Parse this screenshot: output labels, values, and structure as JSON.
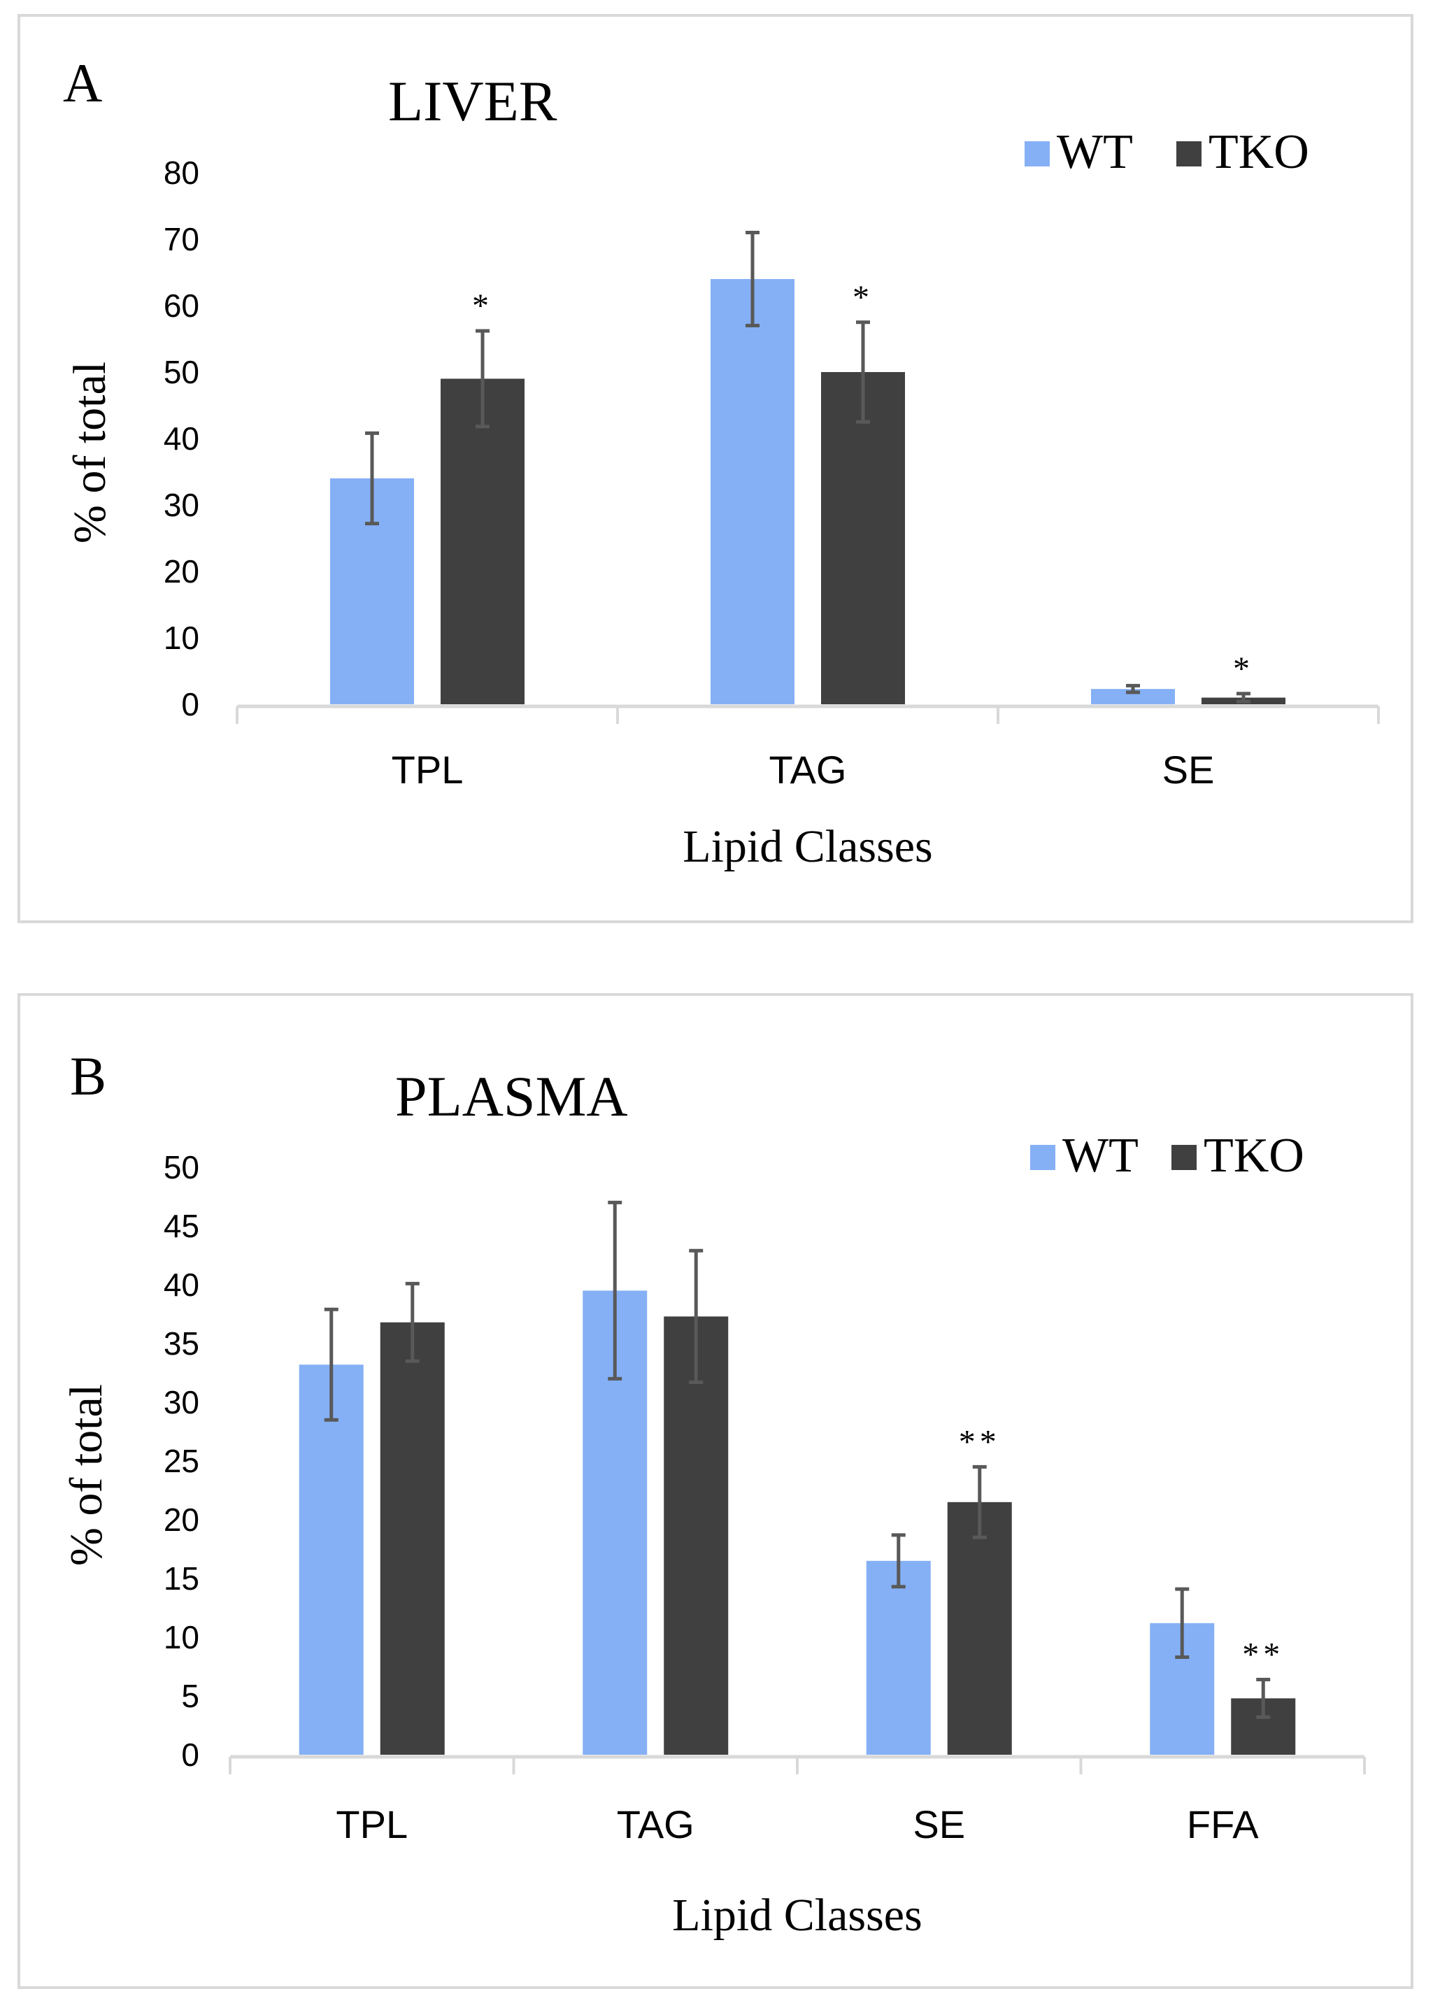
{
  "chart_data": [
    {
      "type": "bar",
      "panel_label": "A",
      "title": "LIVER",
      "xlabel": "Lipid Classes",
      "ylabel": "% of total",
      "ylim": [
        0,
        80
      ],
      "yticks": [
        0,
        10,
        20,
        30,
        40,
        50,
        60,
        70,
        80
      ],
      "categories": [
        "TPL",
        "TAG",
        "SE"
      ],
      "legend_position": "top-right",
      "series": [
        {
          "name": "WT",
          "color": "#85B0F5",
          "values": [
            34,
            64,
            2.3
          ],
          "errors": [
            6.8,
            7,
            0.5
          ],
          "annotations": [
            "",
            "",
            ""
          ]
        },
        {
          "name": "TKO",
          "color": "#404040",
          "values": [
            49,
            50,
            1.0
          ],
          "errors": [
            7.2,
            7.5,
            0.6
          ],
          "annotations": [
            "*",
            "*",
            "*"
          ]
        }
      ]
    },
    {
      "type": "bar",
      "panel_label": "B",
      "title": "PLASMA",
      "xlabel": "Lipid Classes",
      "ylabel": "% of total",
      "ylim": [
        0,
        50
      ],
      "yticks": [
        0,
        5,
        10,
        15,
        20,
        25,
        30,
        35,
        40,
        45,
        50
      ],
      "categories": [
        "TPL",
        "TAG",
        "SE",
        "FFA"
      ],
      "legend_position": "top-right",
      "series": [
        {
          "name": "WT",
          "color": "#85B0F5",
          "values": [
            33.2,
            39.5,
            16.5,
            11.2
          ],
          "errors": [
            4.7,
            7.5,
            2.2,
            2.9
          ],
          "annotations": [
            "",
            "",
            "",
            ""
          ]
        },
        {
          "name": "TKO",
          "color": "#404040",
          "values": [
            36.8,
            37.3,
            21.5,
            4.8
          ],
          "errors": [
            3.3,
            5.6,
            3.0,
            1.6
          ],
          "annotations": [
            "",
            "",
            "**",
            "**"
          ]
        }
      ]
    }
  ]
}
